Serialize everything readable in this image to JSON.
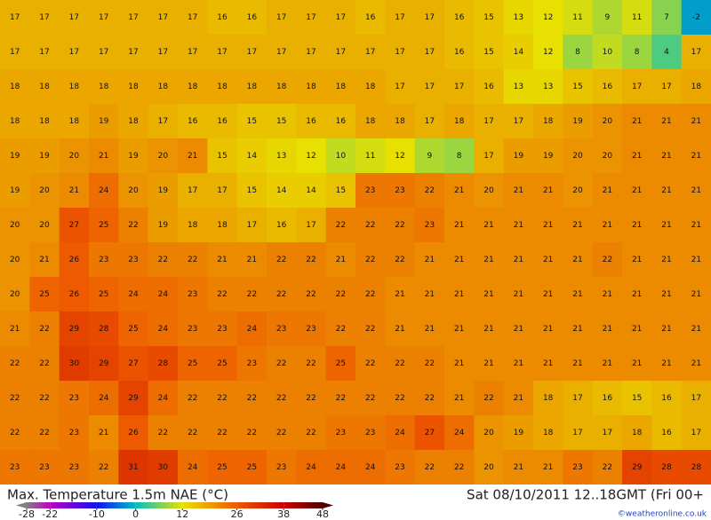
{
  "map": {
    "title": "Max. Temperature 1.5m NAE (°C)",
    "valid_time": "Sat 08/10/2011 12..18GMT  (Fri 00+",
    "credit": "©weatheronline.co.uk",
    "grid": [
      [
        17,
        17,
        17,
        17,
        17,
        17,
        17,
        16,
        16,
        17,
        17,
        17,
        16,
        17,
        17,
        16,
        15,
        13,
        12,
        11,
        9,
        11,
        7,
        -2
      ],
      [
        17,
        17,
        17,
        17,
        17,
        17,
        17,
        17,
        17,
        17,
        17,
        17,
        17,
        17,
        17,
        16,
        15,
        14,
        12,
        8,
        10,
        8,
        4,
        17
      ],
      [
        18,
        18,
        18,
        18,
        18,
        18,
        18,
        18,
        18,
        18,
        18,
        18,
        18,
        17,
        17,
        17,
        16,
        13,
        13,
        15,
        16,
        17,
        17,
        18
      ],
      [
        18,
        18,
        18,
        19,
        18,
        17,
        16,
        16,
        15,
        15,
        16,
        16,
        18,
        18,
        17,
        18,
        17,
        17,
        18,
        19,
        20,
        21,
        21,
        21
      ],
      [
        19,
        19,
        20,
        21,
        19,
        20,
        21,
        15,
        14,
        13,
        12,
        10,
        11,
        12,
        9,
        8,
        17,
        19,
        19,
        20,
        20,
        21,
        21,
        21
      ],
      [
        19,
        20,
        21,
        24,
        20,
        19,
        17,
        17,
        15,
        14,
        14,
        15,
        23,
        23,
        22,
        21,
        20,
        21,
        21,
        20,
        21,
        21,
        21,
        21
      ],
      [
        20,
        20,
        27,
        25,
        22,
        19,
        18,
        18,
        17,
        16,
        17,
        22,
        22,
        22,
        23,
        21,
        21,
        21,
        21,
        21,
        21,
        21,
        21,
        21
      ],
      [
        20,
        21,
        26,
        23,
        23,
        22,
        22,
        21,
        21,
        22,
        22,
        21,
        22,
        22,
        21,
        21,
        21,
        21,
        21,
        21,
        22,
        21,
        21,
        21
      ],
      [
        20,
        25,
        26,
        25,
        24,
        24,
        23,
        22,
        22,
        22,
        22,
        22,
        22,
        21,
        21,
        21,
        21,
        21,
        21,
        21,
        21,
        21,
        21,
        21
      ],
      [
        21,
        22,
        29,
        28,
        25,
        24,
        23,
        23,
        24,
        23,
        23,
        22,
        22,
        21,
        21,
        21,
        21,
        21,
        21,
        21,
        21,
        21,
        21,
        21
      ],
      [
        22,
        22,
        30,
        29,
        27,
        28,
        25,
        25,
        23,
        22,
        22,
        25,
        22,
        22,
        22,
        21,
        21,
        21,
        21,
        21,
        21,
        21,
        21,
        21
      ],
      [
        22,
        22,
        23,
        24,
        29,
        24,
        22,
        22,
        22,
        22,
        22,
        22,
        22,
        22,
        22,
        21,
        22,
        21,
        18,
        17,
        16,
        15,
        16,
        17
      ],
      [
        22,
        22,
        23,
        21,
        26,
        22,
        22,
        22,
        22,
        22,
        22,
        23,
        23,
        24,
        27,
        24,
        20,
        19,
        18,
        17,
        17,
        18,
        16,
        17
      ],
      [
        23,
        23,
        23,
        22,
        31,
        30,
        24,
        25,
        25,
        23,
        24,
        24,
        24,
        23,
        22,
        22,
        20,
        21,
        21,
        23,
        22,
        29,
        28,
        28
      ]
    ],
    "legend": {
      "ticks": [
        -28,
        -22,
        -10,
        0,
        12,
        26,
        38,
        48
      ],
      "colors": [
        "#808080",
        "#c000c0",
        "#1010f0",
        "#00c0c0",
        "#e8e000",
        "#ee5a00",
        "#c80000",
        "#500000"
      ]
    }
  }
}
